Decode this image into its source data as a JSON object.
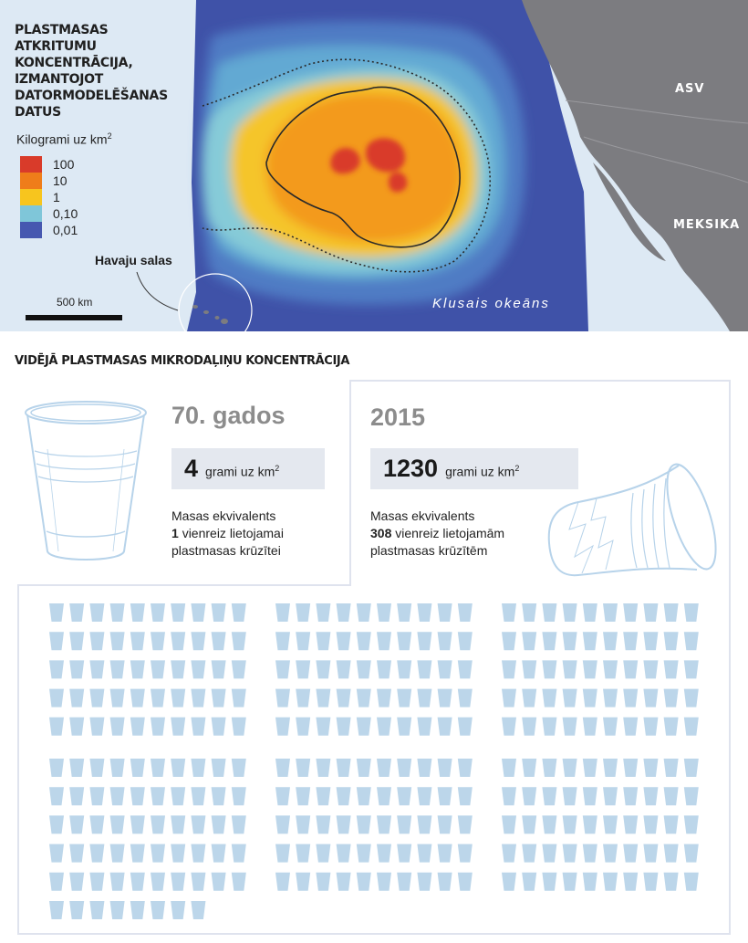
{
  "map": {
    "title": "PLASTMASAS ATKRITUMU KONCENTRĀCIJA, IZMANTOJOT DATORMODELĒŠANAS DATUS",
    "legend_title": "Kilogrami uz km",
    "legend_title_sup": "2",
    "legend": [
      {
        "label": "100",
        "color": "#d93b2a"
      },
      {
        "label": "10",
        "color": "#ef7d1a"
      },
      {
        "label": "1",
        "color": "#f7c51e"
      },
      {
        "label": "0,10",
        "color": "#7fc6d9"
      },
      {
        "label": "0,01",
        "color": "#4658b0"
      }
    ],
    "labels": {
      "usa": "ASV",
      "mexico": "MEKSIKA",
      "hawaii": "Havaju salas",
      "scale": "500 km",
      "ocean": "Klusais okeāns"
    }
  },
  "section_title": "VIDĒJĀ PLASTMASAS MIKRODAĻIŅU KONCENTRĀCIJA",
  "past": {
    "period": "70. gados",
    "value": "4",
    "unit": "grami uz km",
    "unit_sup": "2",
    "equiv_line1": "Masas ekvivalents",
    "equiv_num": "1",
    "equiv_line2_rest": "vienreiz lietojamai",
    "equiv_line3": "plastmasas krūzītei"
  },
  "present": {
    "period": "2015",
    "value": "1230",
    "unit": "grami uz km",
    "unit_sup": "2",
    "equiv_line1": "Masas ekvivalents",
    "equiv_num": "308",
    "equiv_line2_rest": "vienreiz lietojamām",
    "equiv_line3": "plastmasas krūzītēm"
  },
  "cups": {
    "count": 308,
    "color": "#bcd6ea"
  },
  "colors": {
    "panel_border": "#dfe3ee",
    "value_box_bg": "#e4e8ef",
    "land": "#7c7c80",
    "ocean_deep": "#4658b0"
  }
}
